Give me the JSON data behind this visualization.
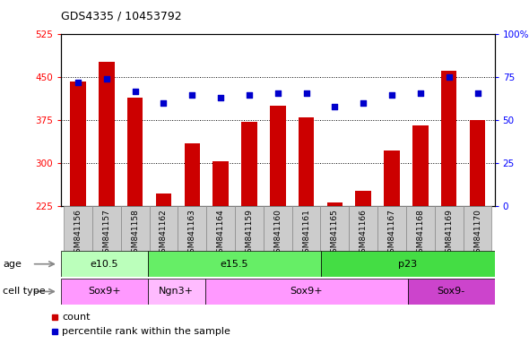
{
  "title": "GDS4335 / 10453792",
  "samples": [
    "GSM841156",
    "GSM841157",
    "GSM841158",
    "GSM841162",
    "GSM841163",
    "GSM841164",
    "GSM841159",
    "GSM841160",
    "GSM841161",
    "GSM841165",
    "GSM841166",
    "GSM841167",
    "GSM841168",
    "GSM841169",
    "GSM841170"
  ],
  "counts": [
    443,
    477,
    415,
    248,
    335,
    303,
    372,
    400,
    380,
    232,
    252,
    322,
    367,
    462,
    375
  ],
  "percentiles": [
    72,
    74,
    67,
    60,
    65,
    63,
    65,
    66,
    66,
    58,
    60,
    65,
    66,
    75,
    66
  ],
  "ylim_left": [
    225,
    525
  ],
  "ylim_right": [
    0,
    100
  ],
  "yticks_left": [
    225,
    300,
    375,
    450,
    525
  ],
  "yticks_right": [
    0,
    25,
    50,
    75,
    100
  ],
  "bar_color": "#cc0000",
  "dot_color": "#0000cc",
  "age_groups": [
    {
      "label": "e10.5",
      "start": 0,
      "end": 3,
      "color": "#bbffbb"
    },
    {
      "label": "e15.5",
      "start": 3,
      "end": 9,
      "color": "#66ee66"
    },
    {
      "label": "p23",
      "start": 9,
      "end": 15,
      "color": "#44dd44"
    }
  ],
  "cell_type_groups": [
    {
      "label": "Sox9+",
      "start": 0,
      "end": 3,
      "color": "#ff99ff"
    },
    {
      "label": "Ngn3+",
      "start": 3,
      "end": 5,
      "color": "#ffbbff"
    },
    {
      "label": "Sox9+",
      "start": 5,
      "end": 12,
      "color": "#ff99ff"
    },
    {
      "label": "Sox9-",
      "start": 12,
      "end": 15,
      "color": "#cc44cc"
    }
  ],
  "age_label": "age",
  "cell_type_label": "cell type",
  "legend_count": "count",
  "legend_pct": "percentile rank within the sample",
  "bg_color": "#ffffff",
  "plot_bg": "#ffffff",
  "xtick_bg": "#cccccc"
}
